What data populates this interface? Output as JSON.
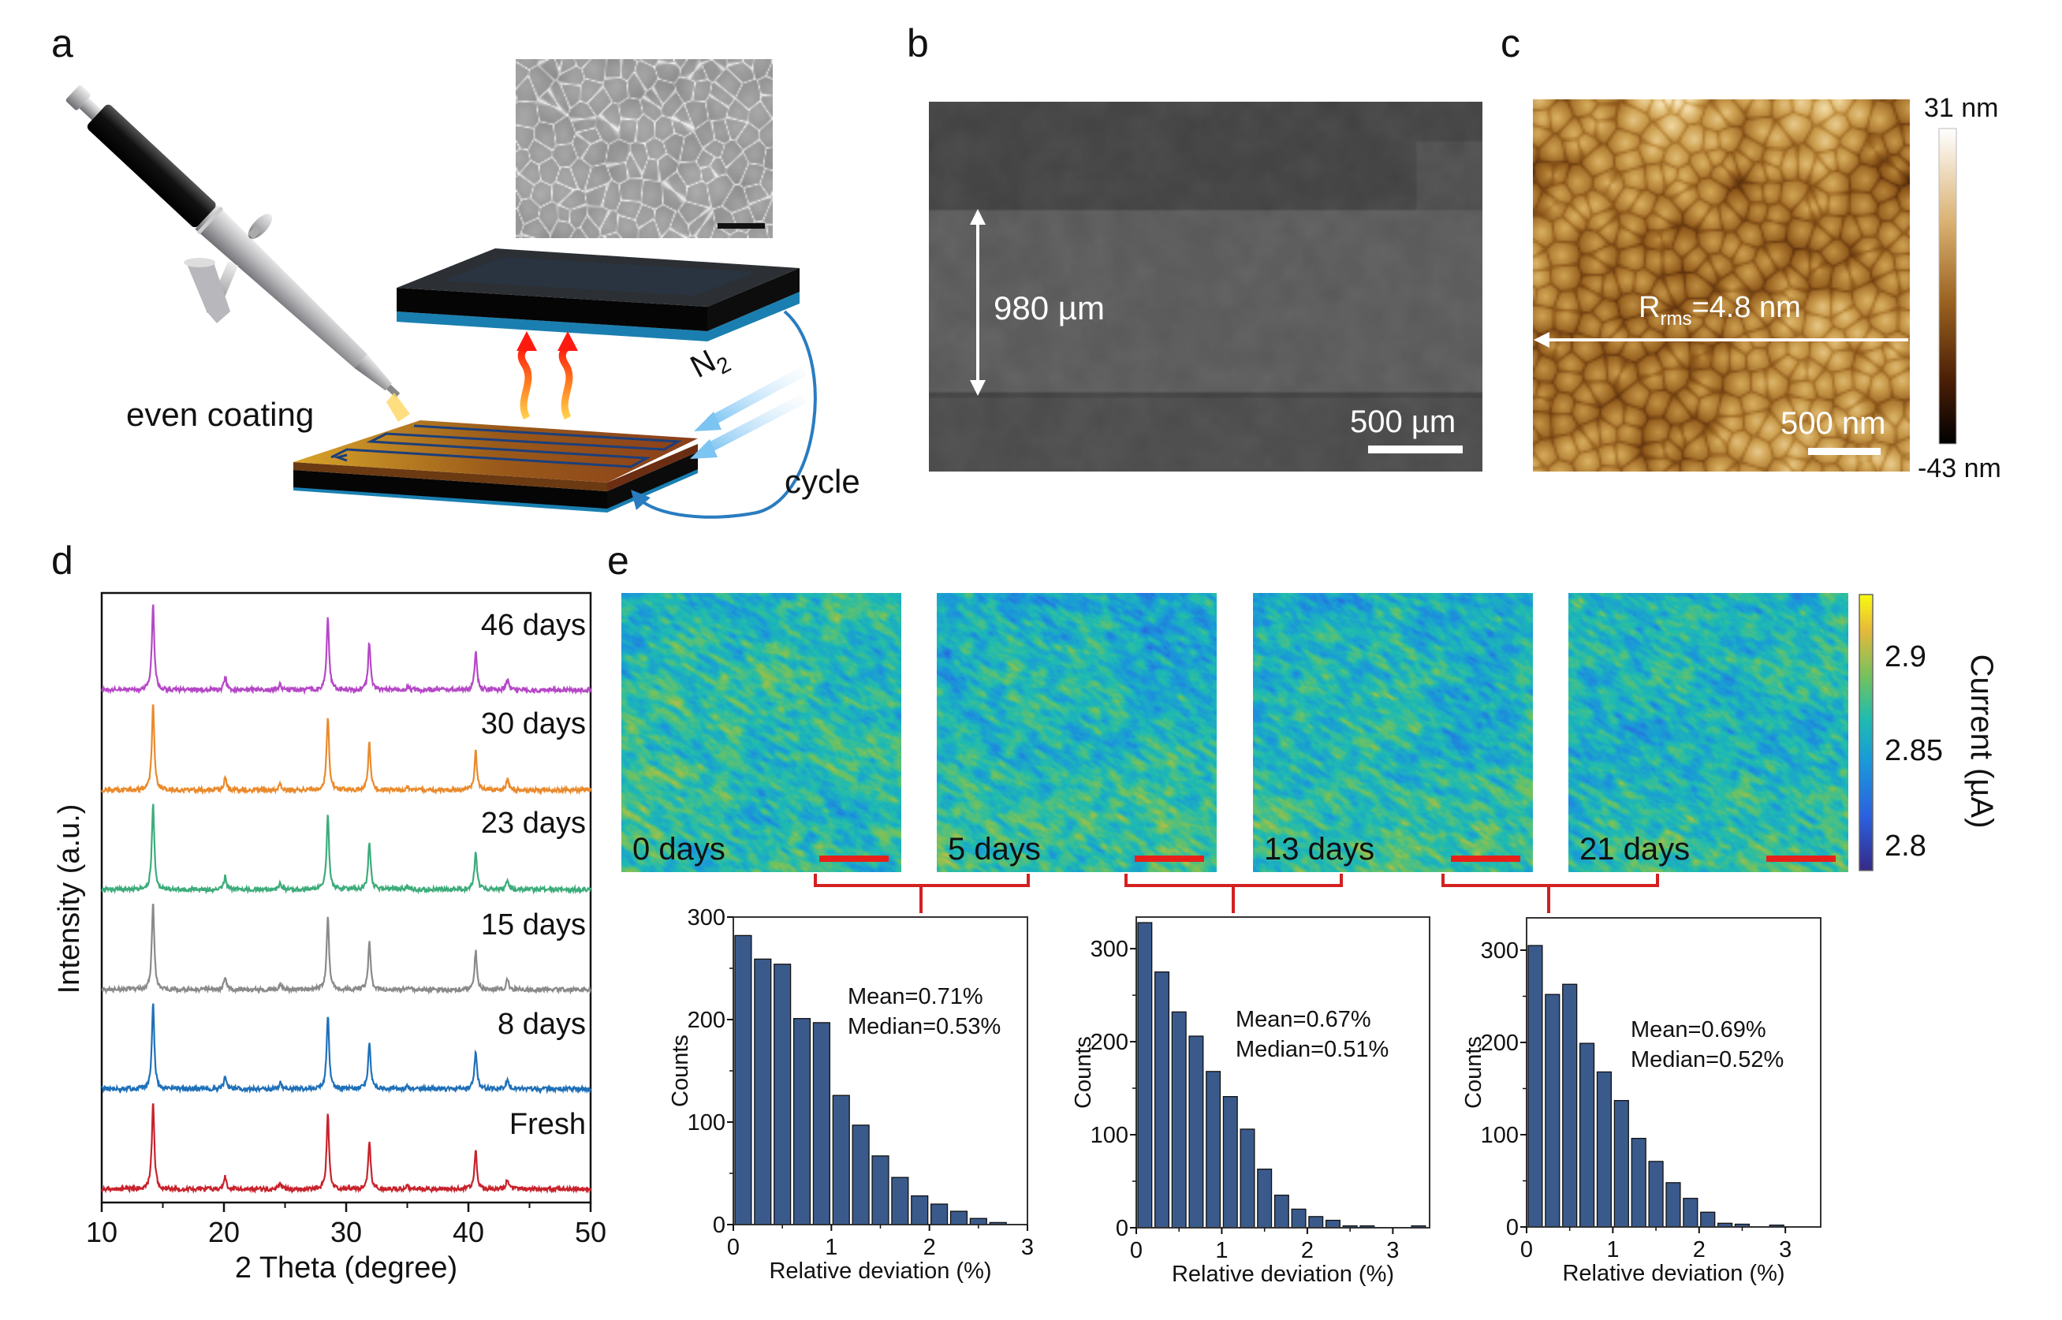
{
  "panels": {
    "a": {
      "label": "a",
      "coating_label": "even coating",
      "gas_label": "N",
      "gas_subscript": "2",
      "cycle_label": "cycle"
    },
    "b": {
      "label": "b",
      "thickness_label": "980 µm",
      "scale_label": "500 µm"
    },
    "c": {
      "label": "c",
      "roughness_symbol": "R",
      "roughness_subscript": "rms",
      "roughness_value": "=4.8 nm",
      "scale_label": "500 nm",
      "colorbar_max": "31 nm",
      "colorbar_min": "-43 nm"
    },
    "d": {
      "label": "d"
    },
    "e": {
      "label": "e",
      "maps": [
        {
          "label": "0 days"
        },
        {
          "label": "5 days"
        },
        {
          "label": "13 days"
        },
        {
          "label": "21 days"
        }
      ],
      "colorbar": {
        "ticks": [
          "2.9",
          "2.85",
          "2.8"
        ],
        "label": "Current (µA)"
      },
      "colors": {
        "label": "#e8201a",
        "bracket": "#d42020"
      }
    }
  },
  "chart_data": [
    {
      "id": "xrd",
      "type": "line",
      "xlabel": "2 Theta (degree)",
      "ylabel": "Intensity (a.u.)",
      "xlim": [
        10,
        50
      ],
      "xticks": [
        "10",
        "20",
        "30",
        "40",
        "50"
      ],
      "grid": false,
      "peaks_2theta": [
        14.2,
        20.1,
        24.6,
        28.5,
        31.9,
        35.0,
        40.6,
        43.2
      ],
      "peak_relative_intensity": [
        1.0,
        0.15,
        0.07,
        0.85,
        0.55,
        0.03,
        0.45,
        0.12
      ],
      "series": [
        {
          "name": "46 days",
          "color": "#b548c6"
        },
        {
          "name": "30 days",
          "color": "#ea8a2c"
        },
        {
          "name": "23 days",
          "color": "#3dac7b"
        },
        {
          "name": "15 days",
          "color": "#8a8a8a"
        },
        {
          "name": "8 days",
          "color": "#1f70b8"
        },
        {
          "name": "Fresh",
          "color": "#c8222c"
        }
      ]
    },
    {
      "id": "hist-5days",
      "type": "bar",
      "xlabel": "Relative deviation (%)",
      "ylabel": "Counts",
      "xlim": [
        0,
        3
      ],
      "ylim": [
        0,
        300
      ],
      "xticks": [
        "0",
        "1",
        "2",
        "3"
      ],
      "yticks": [
        "0",
        "100",
        "200",
        "300"
      ],
      "bin_width": 0.2,
      "bin_starts": [
        0,
        0.2,
        0.4,
        0.6,
        0.8,
        1.0,
        1.2,
        1.4,
        1.6,
        1.8,
        2.0,
        2.2,
        2.4,
        2.6
      ],
      "values": [
        282,
        259,
        254,
        201,
        197,
        126,
        97,
        67,
        46,
        28,
        20,
        13,
        6,
        2
      ],
      "annotations": [
        "Mean=0.71%",
        "Median=0.53%"
      ],
      "color": "#3a5a8c"
    },
    {
      "id": "hist-13days",
      "type": "bar",
      "xlabel": "Relative deviation (%)",
      "ylabel": "Counts",
      "xlim": [
        0,
        3.43
      ],
      "ylim": [
        0,
        334
      ],
      "xticks": [
        "0",
        "1",
        "2",
        "3"
      ],
      "yticks": [
        "0",
        "100",
        "200",
        "300"
      ],
      "bin_width": 0.2,
      "bin_starts": [
        0,
        0.2,
        0.4,
        0.6,
        0.8,
        1.0,
        1.2,
        1.4,
        1.6,
        1.8,
        2.0,
        2.2,
        2.4,
        2.6,
        2.8,
        3.0,
        3.2
      ],
      "values": [
        328,
        275,
        232,
        206,
        168,
        141,
        106,
        63,
        35,
        20,
        12,
        8,
        2,
        2,
        0,
        0,
        2
      ],
      "annotations": [
        "Mean=0.67%",
        "Median=0.51%"
      ],
      "color": "#3a5a8c"
    },
    {
      "id": "hist-21days",
      "type": "bar",
      "xlabel": "Relative deviation (%)",
      "ylabel": "Counts",
      "xlim": [
        0,
        3.41
      ],
      "ylim": [
        0,
        335
      ],
      "xticks": [
        "0",
        "1",
        "2",
        "3"
      ],
      "yticks": [
        "0",
        "100",
        "200",
        "300"
      ],
      "bin_width": 0.2,
      "bin_starts": [
        0,
        0.2,
        0.4,
        0.6,
        0.8,
        1.0,
        1.2,
        1.4,
        1.6,
        1.8,
        2.0,
        2.2,
        2.4,
        2.6,
        2.8
      ],
      "values": [
        305,
        252,
        263,
        199,
        168,
        137,
        96,
        71,
        48,
        31,
        16,
        4,
        3,
        0,
        2
      ],
      "annotations": [
        "Mean=0.69%",
        "Median=0.52%"
      ],
      "color": "#3a5a8c"
    }
  ]
}
